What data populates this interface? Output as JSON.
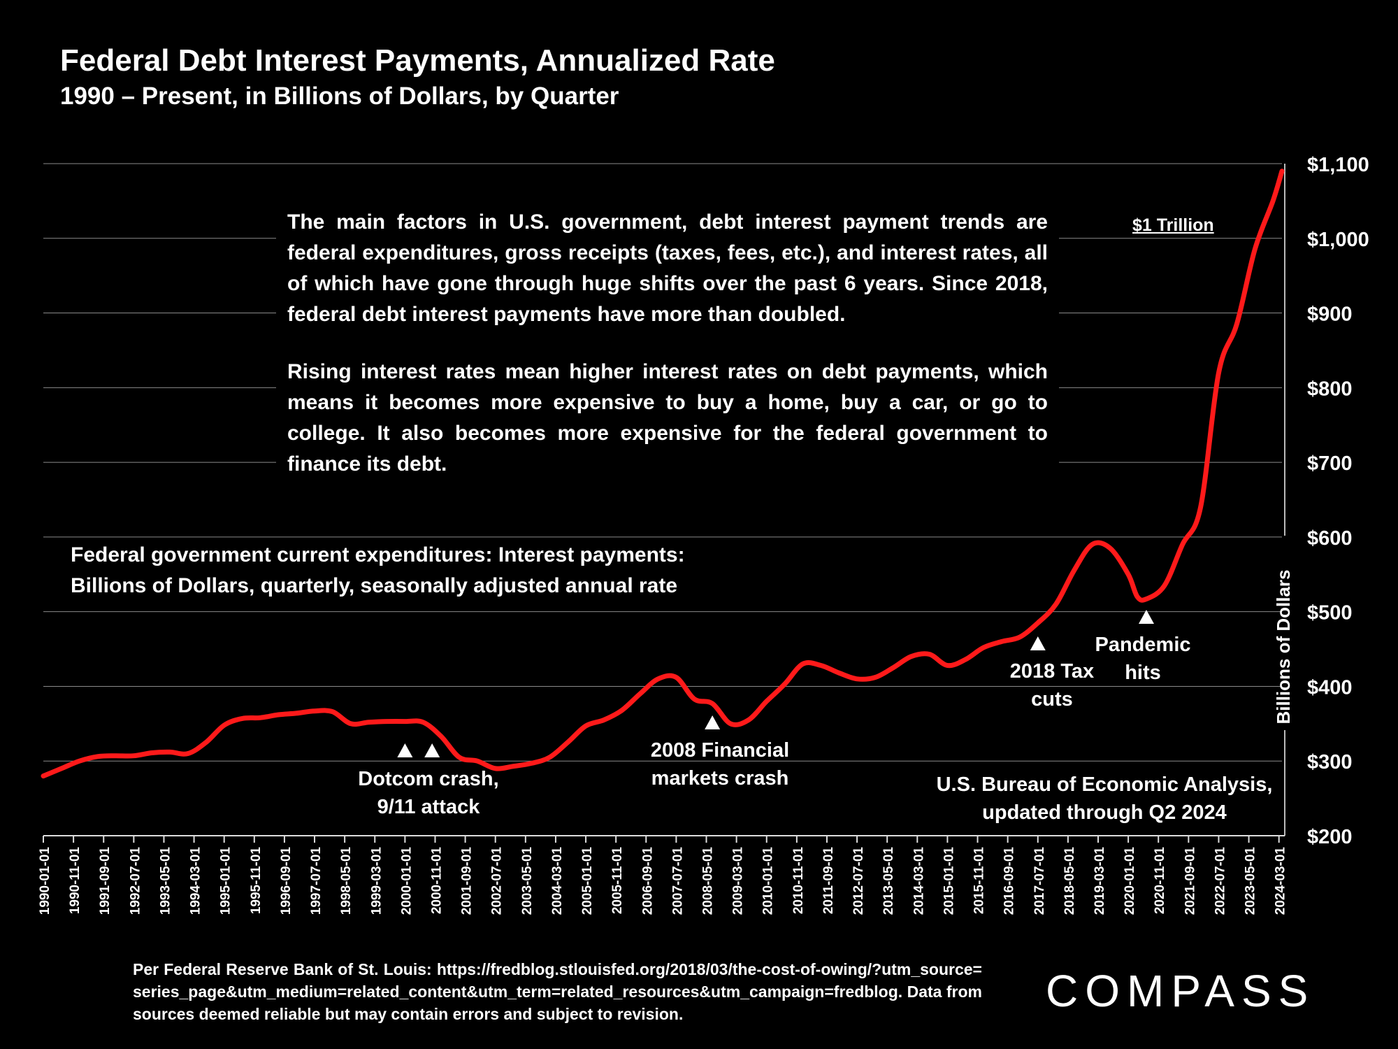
{
  "header": {
    "title": "Federal Debt Interest Payments, Annualized Rate",
    "subtitle": "1990 – Present, in Billions of Dollars, by Quarter"
  },
  "text": {
    "paragraph1": "The main factors in U.S. government, debt interest payment trends are federal expenditures, gross receipts (taxes, fees, etc.), and interest rates, all of which have gone through huge shifts over the past 6 years. Since 2018, federal debt interest payments have more than doubled.",
    "paragraph2": "Rising interest rates mean higher interest rates on debt payments, which means it becomes more expensive to buy a home, buy a car, or go to college. It also becomes more expensive for the federal government to finance its debt.",
    "series_description_line1": "Federal government current expenditures: Interest payments:",
    "series_description_line2": "Billions of Dollars, quarterly, seasonally adjusted annual rate",
    "source_line1": "U.S. Bureau of Economic Analysis,",
    "source_line2": "updated through Q2 2024",
    "footnote": "Per Federal Reserve Bank of St. Louis: https://fredblog.stlouisfed.org/2018/03/the-cost-of-owing/?utm_source=series_page&utm_medium=related_content&utm_term=related_resources&utm_campaign=fredblog. Data from sources deemed reliable but may contain errors and subject to revision.",
    "logo": "COMPASS"
  },
  "chart_data": {
    "type": "line",
    "ylabel": "Billions of Dollars",
    "ylim": [
      200,
      1100
    ],
    "yticks": [
      "$1,100",
      "$1,000",
      "$900",
      "$800",
      "$700",
      "$600",
      "$500",
      "$400",
      "$300",
      "$200"
    ],
    "xticks": [
      "1990-01-01",
      "1990-11-01",
      "1991-09-01",
      "1992-07-01",
      "1993-05-01",
      "1994-03-01",
      "1995-01-01",
      "1995-11-01",
      "1996-09-01",
      "1997-07-01",
      "1998-05-01",
      "1999-03-01",
      "2000-01-01",
      "2000-11-01",
      "2001-09-01",
      "2002-07-01",
      "2003-05-01",
      "2004-03-01",
      "2005-01-01",
      "2005-11-01",
      "2006-09-01",
      "2007-07-01",
      "2008-05-01",
      "2009-03-01",
      "2010-01-01",
      "2010-11-01",
      "2011-09-01",
      "2012-07-01",
      "2013-05-01",
      "2014-03-01",
      "2015-01-01",
      "2015-11-01",
      "2016-09-01",
      "2017-07-01",
      "2018-05-01",
      "2019-03-01",
      "2020-01-01",
      "2020-11-01",
      "2021-09-01",
      "2022-07-01",
      "2023-05-01",
      "2024-03-01"
    ],
    "x_start": 1990.0,
    "x_end": 2024.25,
    "series": [
      {
        "name": "Federal government current expenditures: Interest payments",
        "color": "#ff1a1a",
        "x": [
          1990.0,
          1990.5,
          1991.0,
          1991.5,
          1992.0,
          1992.5,
          1993.0,
          1993.5,
          1994.0,
          1994.5,
          1995.0,
          1995.5,
          1996.0,
          1996.5,
          1997.0,
          1997.5,
          1998.0,
          1998.5,
          1999.0,
          1999.5,
          2000.0,
          2000.5,
          2001.0,
          2001.5,
          2002.0,
          2002.5,
          2003.0,
          2003.5,
          2004.0,
          2004.5,
          2005.0,
          2005.5,
          2006.0,
          2006.5,
          2007.0,
          2007.5,
          2008.0,
          2008.5,
          2009.0,
          2009.5,
          2010.0,
          2010.5,
          2011.0,
          2011.5,
          2012.0,
          2012.5,
          2013.0,
          2013.5,
          2014.0,
          2014.5,
          2015.0,
          2015.5,
          2016.0,
          2016.5,
          2017.0,
          2017.5,
          2018.0,
          2018.5,
          2019.0,
          2019.5,
          2020.0,
          2020.25,
          2020.5,
          2021.0,
          2021.5,
          2022.0,
          2022.5,
          2023.0,
          2023.5,
          2024.0,
          2024.25
        ],
        "values": [
          280,
          290,
          300,
          306,
          307,
          307,
          311,
          312,
          310,
          325,
          348,
          357,
          358,
          362,
          364,
          367,
          366,
          350,
          352,
          353,
          353,
          352,
          333,
          305,
          300,
          290,
          293,
          297,
          305,
          325,
          347,
          355,
          368,
          390,
          410,
          412,
          383,
          377,
          350,
          355,
          380,
          403,
          430,
          428,
          418,
          410,
          412,
          425,
          440,
          443,
          428,
          436,
          452,
          460,
          466,
          485,
          510,
          555,
          590,
          585,
          550,
          520,
          517,
          535,
          590,
          640,
          820,
          885,
          985,
          1050,
          1090
        ]
      }
    ],
    "annotations": [
      {
        "label_line1": "Dotcom crash,",
        "label_line2": "9/11 attack",
        "markers": [
          2000.0,
          2000.75
        ]
      },
      {
        "label_line1": "2008 Financial",
        "label_line2": "markets crash",
        "markers": [
          2008.5
        ]
      },
      {
        "label_line1": "2018 Tax",
        "label_line2": "cuts",
        "markers": [
          2017.5
        ]
      },
      {
        "label_line1": "Pandemic",
        "label_line2": "hits",
        "markers": [
          2020.5
        ]
      },
      {
        "label_line1": "$1 Trillion",
        "label_line2": "",
        "markers": []
      }
    ]
  }
}
